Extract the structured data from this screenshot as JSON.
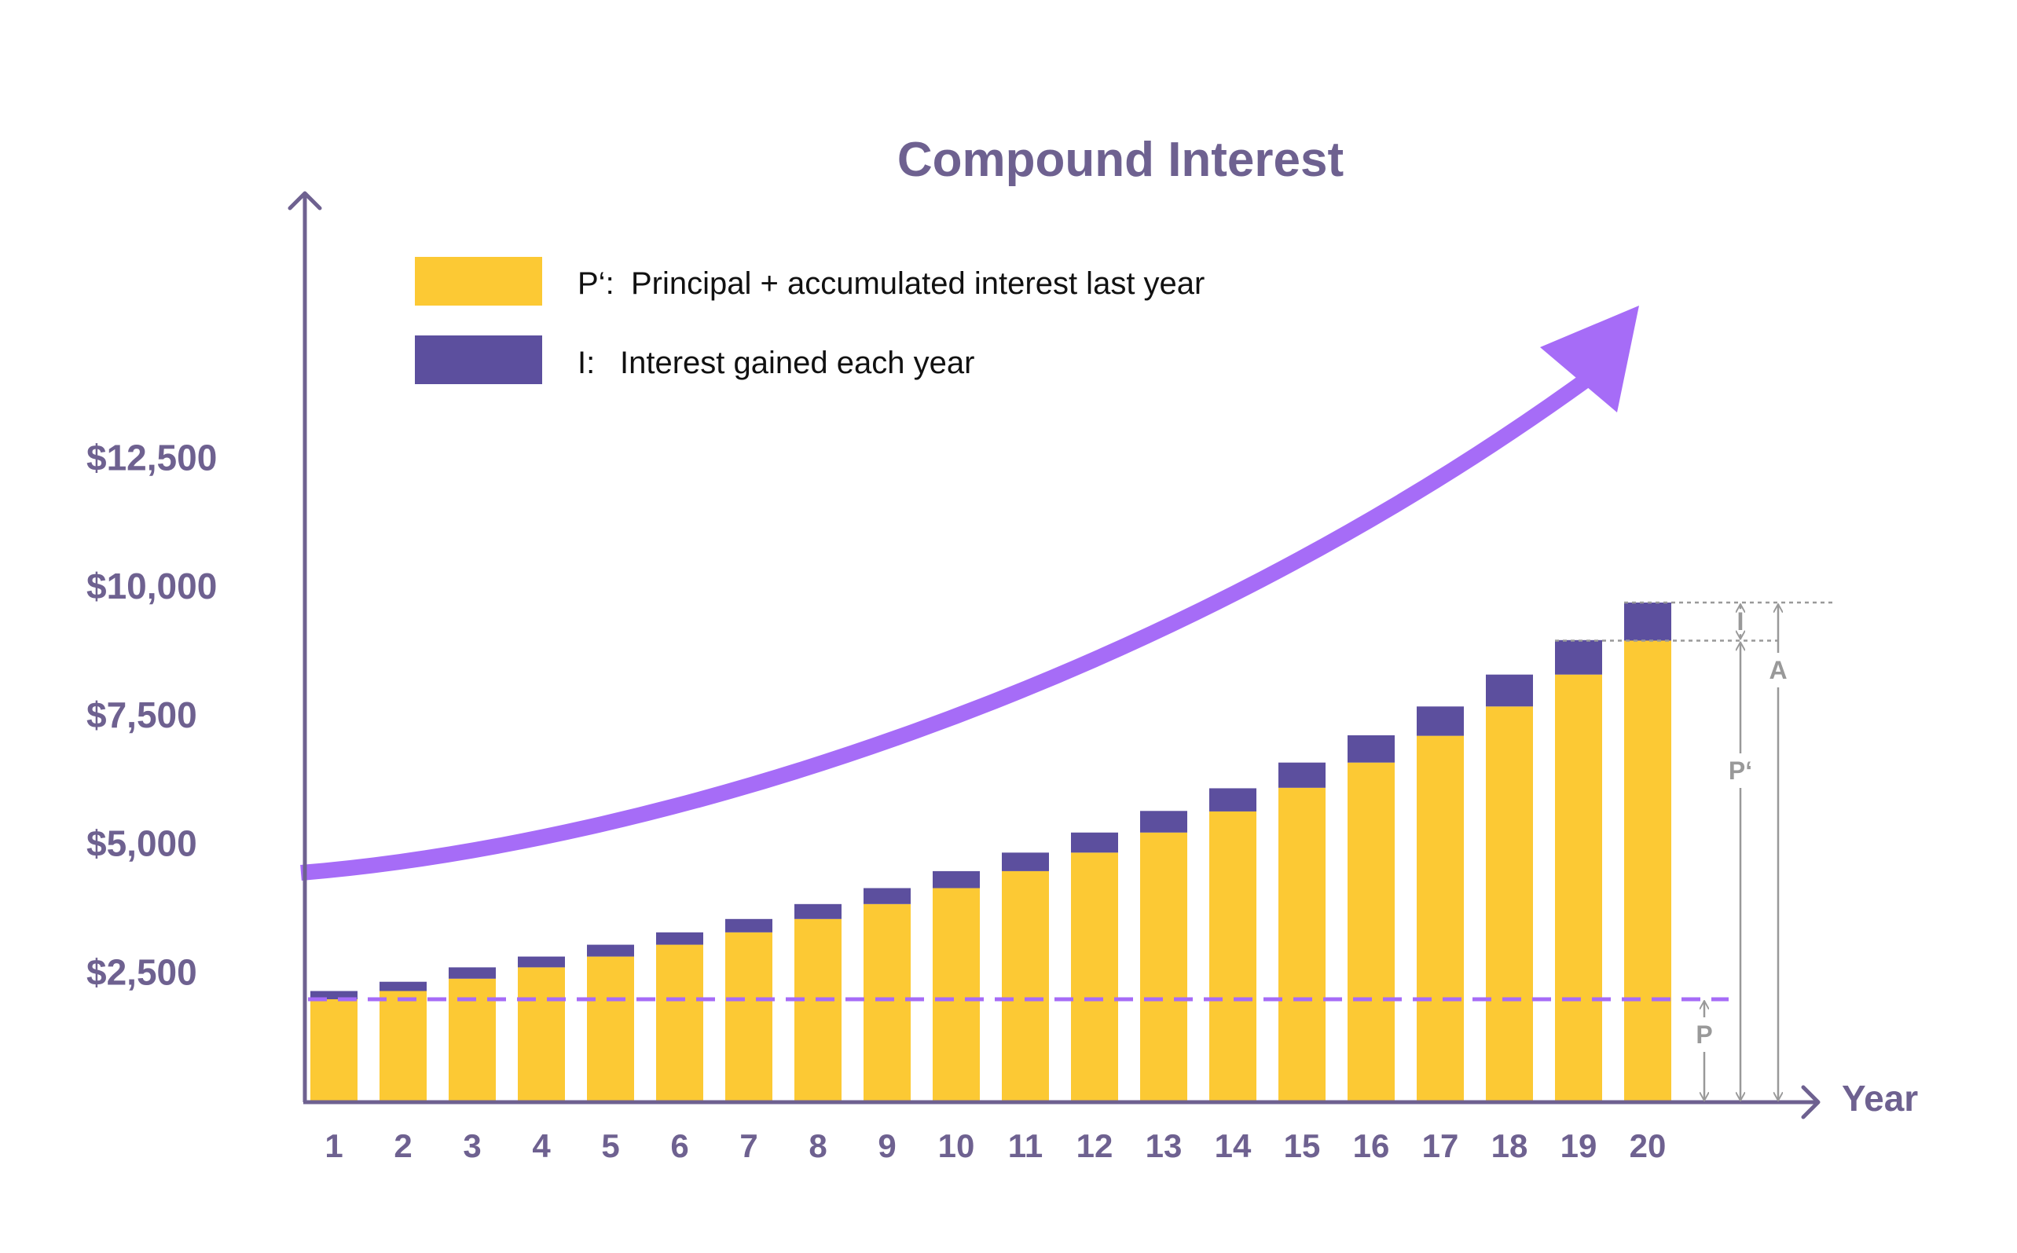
{
  "chart_data": {
    "type": "bar",
    "stacked": true,
    "title": "Compound Interest",
    "xlabel": "Year",
    "ylabel": "",
    "ylim": [
      0,
      15000
    ],
    "y_tick_values": [
      2500,
      5000,
      7500,
      10000,
      12500
    ],
    "y_tick_labels": [
      "$2,500",
      "$5,000",
      "$7,500",
      "$10,000",
      "$12,500"
    ],
    "categories": [
      "1",
      "2",
      "3",
      "4",
      "5",
      "6",
      "7",
      "8",
      "9",
      "10",
      "11",
      "12",
      "13",
      "14",
      "15",
      "16",
      "17",
      "18",
      "19",
      "20"
    ],
    "series": [
      {
        "key": "principal",
        "legend_key": "P‘:",
        "name": "Principal + accumulated interest last year",
        "color": "#FCC934",
        "values": [
          2000,
          2160,
          2400,
          2620,
          2830,
          3060,
          3300,
          3560,
          3850,
          4160,
          4490,
          4850,
          5240,
          5650,
          6110,
          6600,
          7120,
          7690,
          8310,
          8970
        ]
      },
      {
        "key": "interest",
        "legend_key": "I:",
        "name": "Interest gained each year",
        "color": "#5C4F9E",
        "values": [
          160,
          180,
          220,
          210,
          230,
          240,
          260,
          290,
          310,
          330,
          360,
          390,
          420,
          450,
          490,
          530,
          570,
          620,
          670,
          740
        ]
      }
    ],
    "principal_reference": 2000,
    "legend_position": "top-left",
    "grid": false
  },
  "colors": {
    "axis": "#6E6190",
    "text": "#6E6190",
    "principal": "#FCC934",
    "interest": "#5C4F9E",
    "arrow": "#A66CF7",
    "dashed_line": "#A66CF7",
    "dimension": "#999999"
  },
  "annotations": {
    "p_label": "P",
    "p_prime_label": "P‘",
    "i_label": "I",
    "a_label": "A"
  }
}
